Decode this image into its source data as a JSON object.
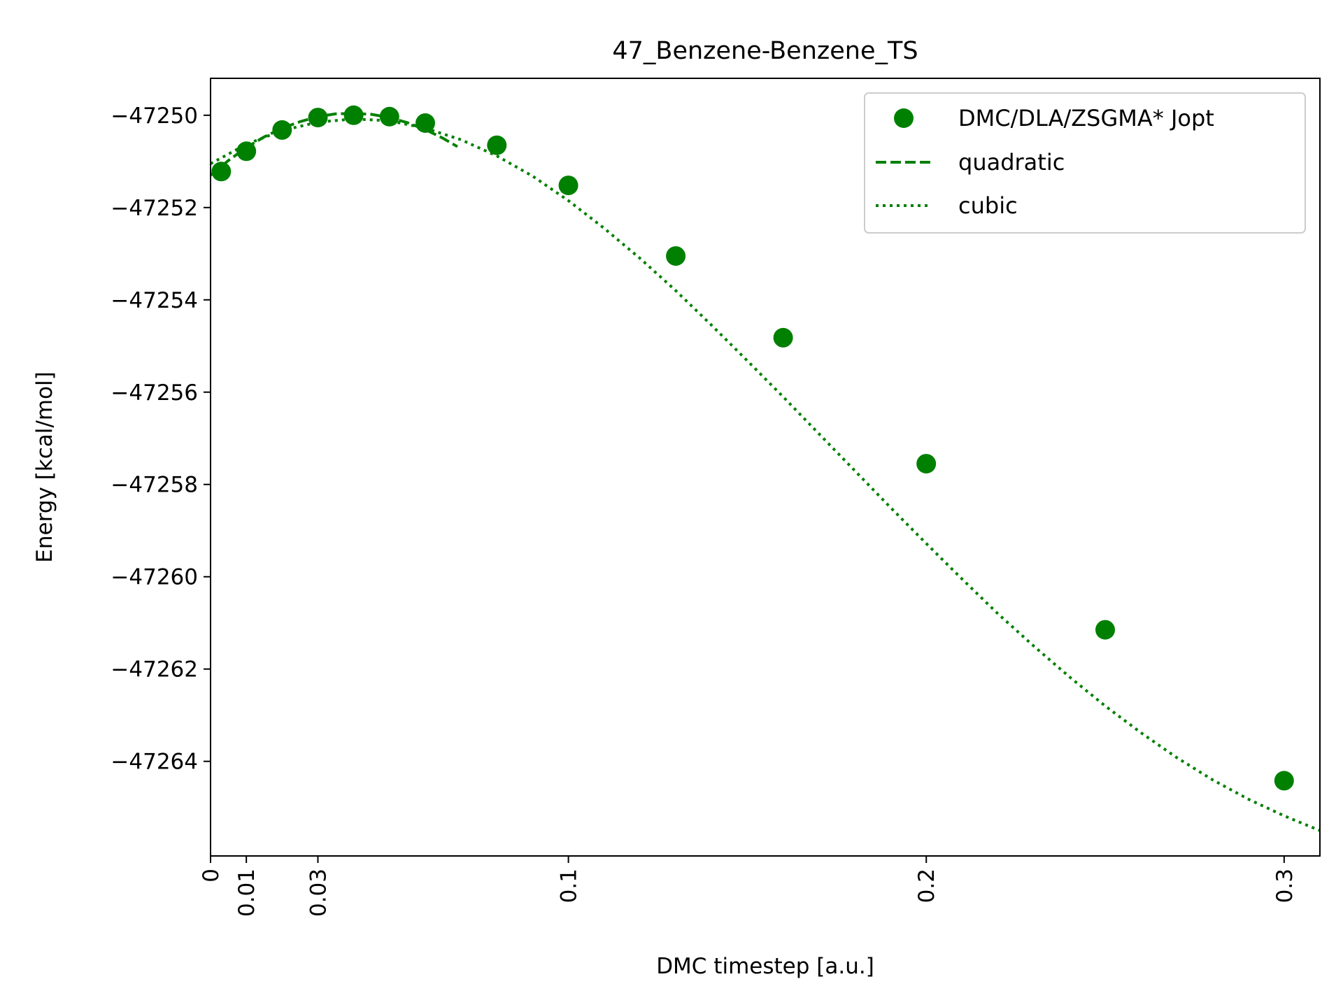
{
  "chart_data": {
    "type": "scatter",
    "title": "47_Benzene-Benzene_TS",
    "xlabel": "DMC timestep [a.u.]",
    "ylabel": "Energy [kcal/mol]",
    "xlim": [
      0,
      0.31
    ],
    "ylim": [
      -47266.05,
      -47249.2
    ],
    "xticks": [
      0,
      0.01,
      0.03,
      0.1,
      0.2,
      0.3
    ],
    "xtick_labels": [
      "0",
      "0.01",
      "0.03",
      "0.1",
      "0.2",
      "0.3"
    ],
    "yticks": [
      -47250,
      -47252,
      -47254,
      -47256,
      -47258,
      -47260,
      -47262,
      -47264
    ],
    "ytick_labels": [
      "−47250",
      "−47252",
      "−47254",
      "−47256",
      "−47258",
      "−47260",
      "−47262",
      "−47264"
    ],
    "grid": false,
    "legend_position": "top-right",
    "color": "#008000",
    "series": [
      {
        "name": "DMC/DLA/ZSGMA* Jopt",
        "kind": "points",
        "x": [
          0.003,
          0.01,
          0.02,
          0.03,
          0.04,
          0.05,
          0.06,
          0.08,
          0.1,
          0.13,
          0.16,
          0.2,
          0.25,
          0.3
        ],
        "y": [
          -47251.22,
          -47250.78,
          -47250.32,
          -47250.05,
          -47250.0,
          -47250.03,
          -47250.17,
          -47250.65,
          -47251.52,
          -47253.05,
          -47254.82,
          -47257.55,
          -47261.15,
          -47264.42
        ]
      },
      {
        "name": "quadratic",
        "kind": "dashed-line",
        "x": [
          0,
          0.005,
          0.01,
          0.015,
          0.02,
          0.025,
          0.03,
          0.035,
          0.04,
          0.045,
          0.05,
          0.055,
          0.06,
          0.065,
          0.069
        ],
        "y": [
          -47251.3,
          -47250.98,
          -47250.7,
          -47250.47,
          -47250.28,
          -47250.14,
          -47250.03,
          -47249.97,
          -47249.96,
          -47249.98,
          -47250.05,
          -47250.16,
          -47250.31,
          -47250.5,
          -47250.68
        ]
      },
      {
        "name": "cubic",
        "kind": "dotted-line",
        "x": [
          0,
          0.01,
          0.02,
          0.03,
          0.04,
          0.05,
          0.06,
          0.07,
          0.08,
          0.09,
          0.1,
          0.11,
          0.12,
          0.13,
          0.14,
          0.15,
          0.16,
          0.17,
          0.18,
          0.19,
          0.2,
          0.21,
          0.22,
          0.23,
          0.24,
          0.25,
          0.26,
          0.27,
          0.28,
          0.29,
          0.3,
          0.31
        ],
        "y": [
          -47251.05,
          -47250.63,
          -47250.33,
          -47250.15,
          -47250.08,
          -47250.12,
          -47250.28,
          -47250.53,
          -47250.88,
          -47251.32,
          -47251.85,
          -47252.45,
          -47253.1,
          -47253.8,
          -47254.55,
          -47255.32,
          -47256.1,
          -47256.9,
          -47257.7,
          -47258.5,
          -47259.28,
          -47260.05,
          -47260.8,
          -47261.5,
          -47262.17,
          -47262.8,
          -47263.38,
          -47263.92,
          -47264.4,
          -47264.82,
          -47265.18,
          -47265.5
        ]
      }
    ]
  }
}
